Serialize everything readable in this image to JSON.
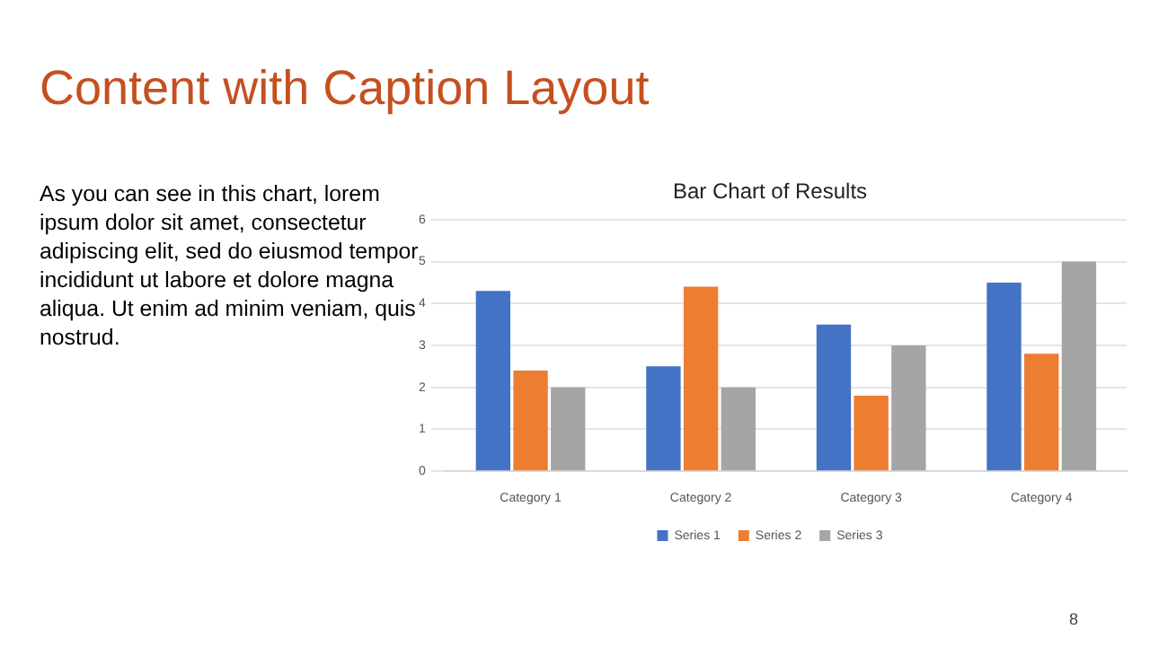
{
  "chart_data": {
    "type": "bar",
    "title": "Content with Caption Layout",
    "subtitle": "Bar Chart of Results",
    "categories": [
      "Category 1",
      "Category 2",
      "Category 3",
      "Category 4"
    ],
    "series": [
      {
        "name": "Series 1",
        "color": "#4472c4",
        "values": [
          4.3,
          2.5,
          3.5,
          4.5
        ]
      },
      {
        "name": "Series 2",
        "color": "#ed7d31",
        "values": [
          2.4,
          4.4,
          1.8,
          2.8
        ]
      },
      {
        "name": "Series 3",
        "color": "#a5a5a5",
        "values": [
          2,
          2,
          3,
          5
        ]
      }
    ],
    "ylim": [
      0,
      6
    ],
    "yticks": [
      0,
      1,
      2,
      3,
      4,
      5,
      6
    ],
    "grid": "y",
    "legend": "bottom",
    "annotations": [
      "As you can see in this chart, lorem ipsum dolor sit amet, consectetur adipiscing elit, sed do eiusmod tempor incididunt ut labore et dolore magna aliqua. Ut enim ad minim veniam, quis nostrud.",
      "8"
    ]
  }
}
